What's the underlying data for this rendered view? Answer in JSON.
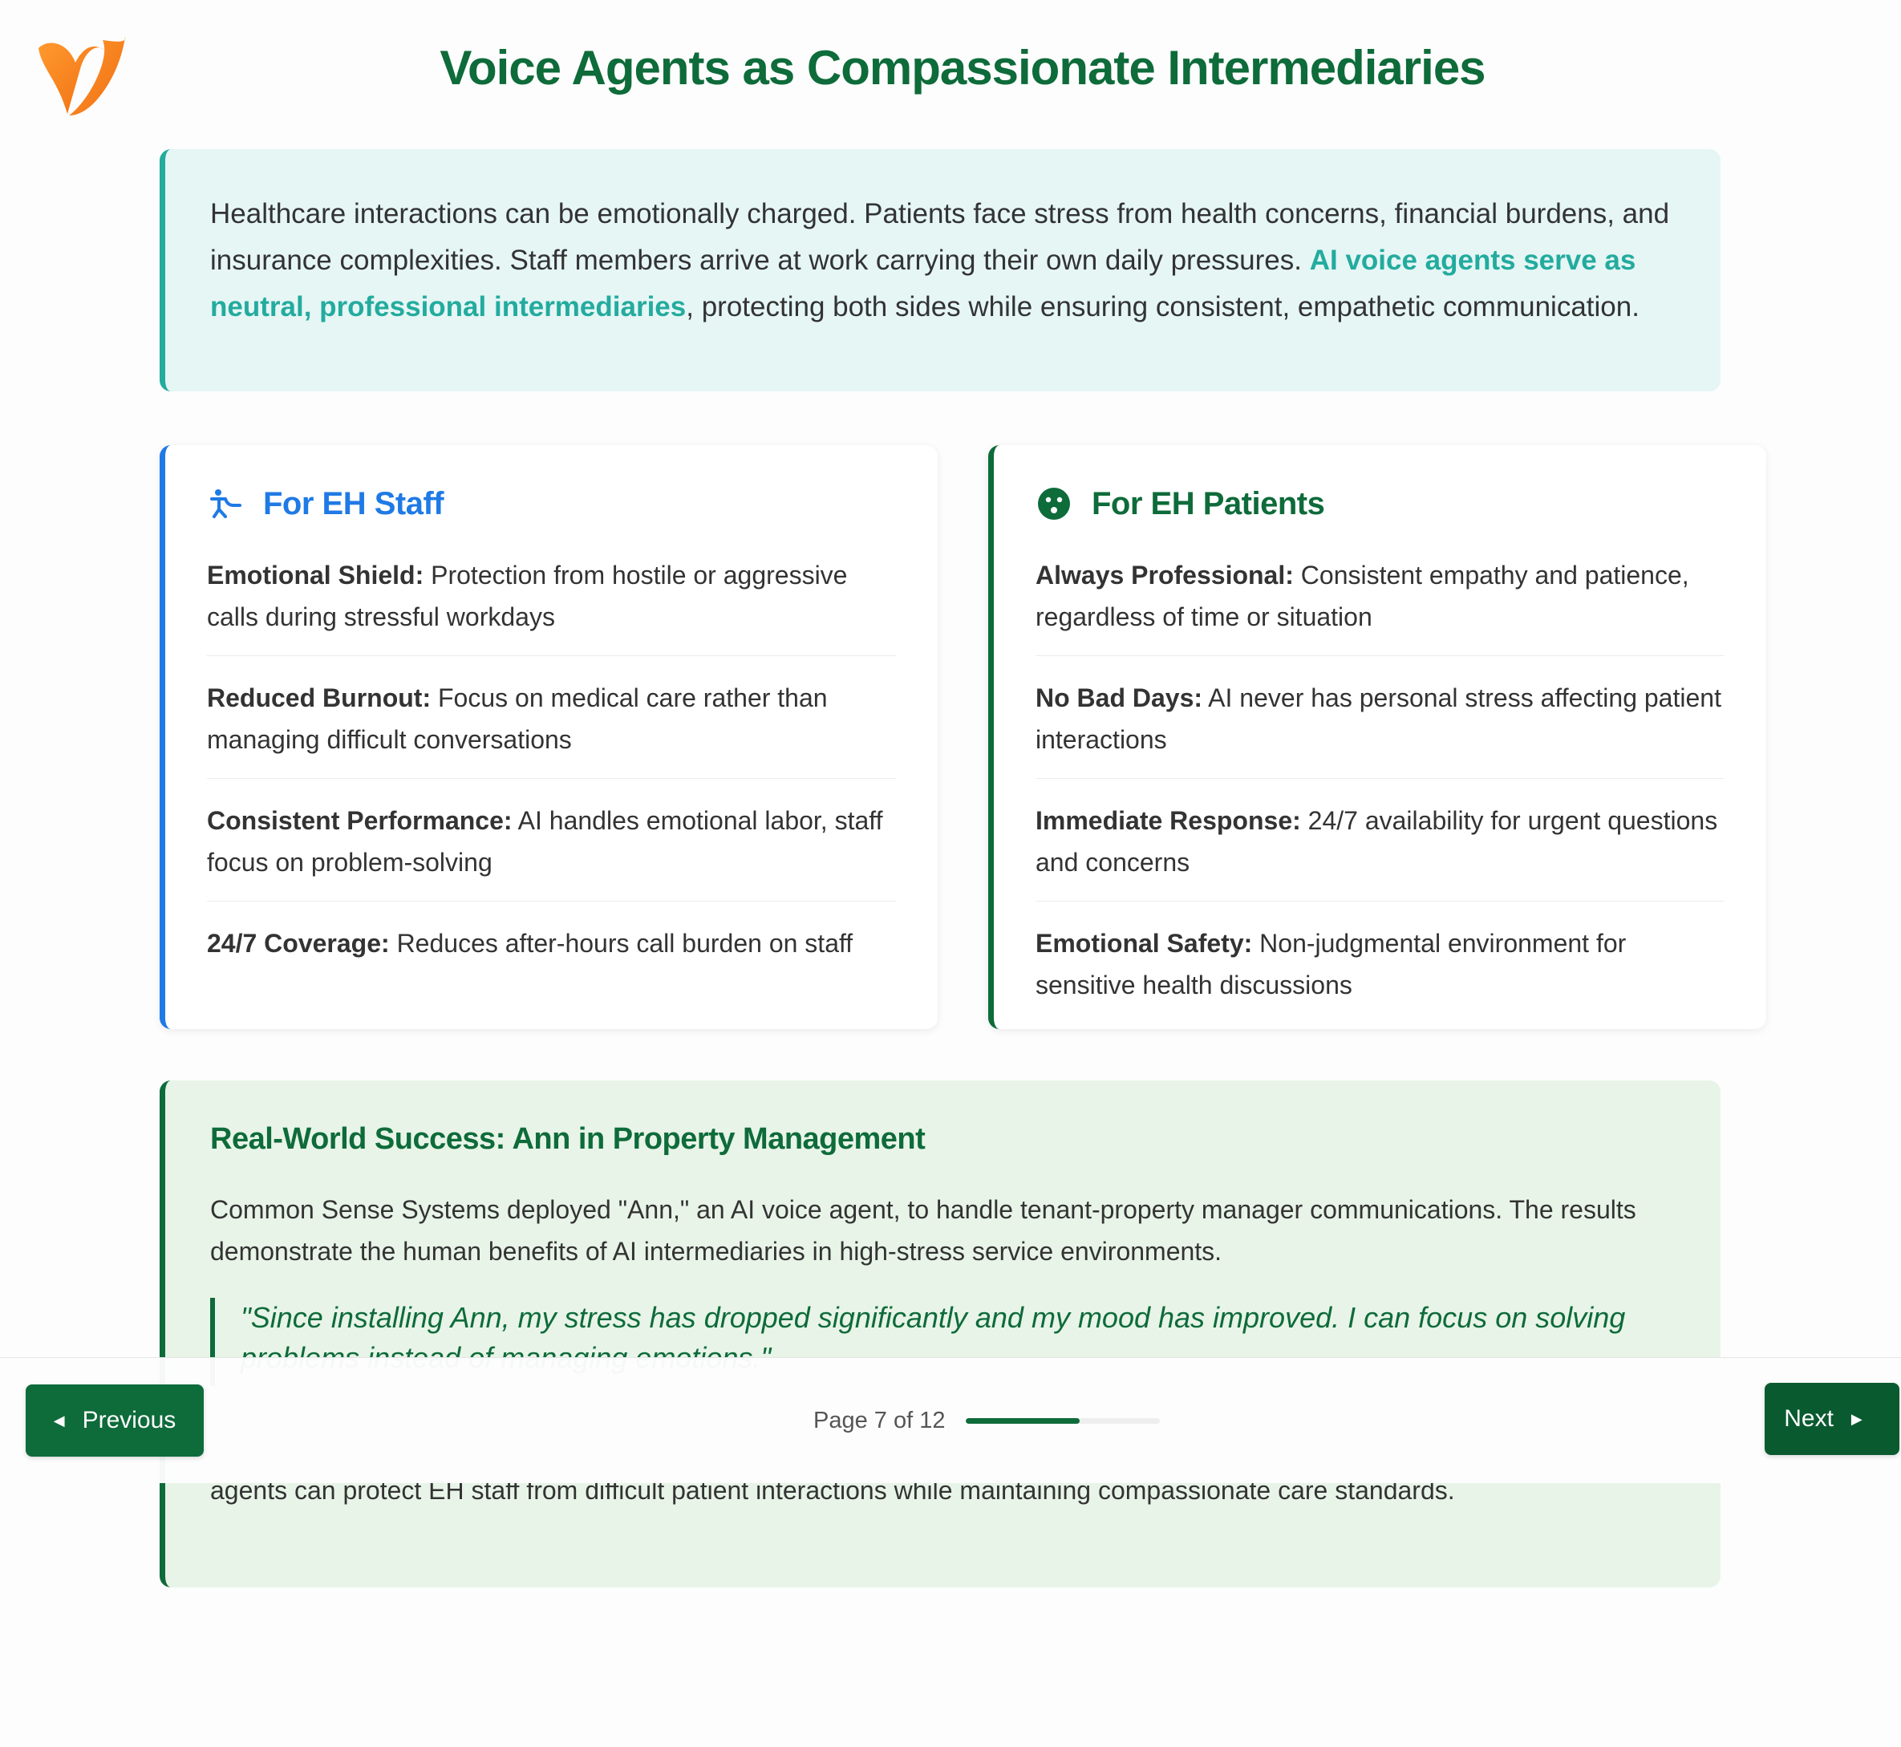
{
  "title": "Voice Agents as Compassionate Intermediaries",
  "intro": {
    "text_before": "Healthcare interactions can be emotionally charged. Patients face stress from health concerns, financial burdens, and insurance complexities. Staff members arrive at work carrying their own daily pressures. ",
    "highlight": "AI voice agents serve as neutral, professional intermediaries",
    "text_after": ", protecting both sides while ensuring consistent, empathetic communication."
  },
  "staff": {
    "title": "For EH Staff",
    "icon": "person-arms-up-icon",
    "items": [
      {
        "label": "Emotional Shield:",
        "text": "Protection from hostile or aggressive calls during stressful workdays"
      },
      {
        "label": "Reduced Burnout:",
        "text": "Focus on medical care rather than managing difficult conversations"
      },
      {
        "label": "Consistent Performance:",
        "text": "AI handles emotional labor, staff focus on problem-solving"
      },
      {
        "label": "24/7 Coverage:",
        "text": "Reduces after-hours call burden on staff"
      }
    ]
  },
  "patients": {
    "title": "For EH Patients",
    "icon": "face-icon",
    "items": [
      {
        "label": "Always Professional:",
        "text": "Consistent empathy and patience, regardless of time or situation"
      },
      {
        "label": "No Bad Days:",
        "text": "AI never has personal stress affecting patient interactions"
      },
      {
        "label": "Immediate Response:",
        "text": "24/7 availability for urgent questions and concerns"
      },
      {
        "label": "Emotional Safety:",
        "text": "Non-judgmental environment for sensitive health discussions"
      }
    ]
  },
  "success": {
    "title": "Real-World Success: Ann in Property Management",
    "body": "Common Sense Systems deployed \"Ann,\" an AI voice agent, to handle tenant-property manager communications. The results demonstrate the human benefits of AI intermediaries in high-stress service environments.",
    "quote": "\"Since installing Ann, my stress has dropped significantly and my mood has improved. I can focus on solving problems instead of managing emotions.\"",
    "conclusion": "agents can protect EH staff from difficult patient interactions while maintaining compassionate care standards."
  },
  "nav": {
    "previous": "Previous",
    "next": "Next",
    "page_label": "Page 7 of 12",
    "progress": 0.583
  },
  "colors": {
    "brand_green": "#0e6b3a",
    "teal": "#23ab9e",
    "blue": "#1f7ae5",
    "logo_orange": "#f58220"
  }
}
